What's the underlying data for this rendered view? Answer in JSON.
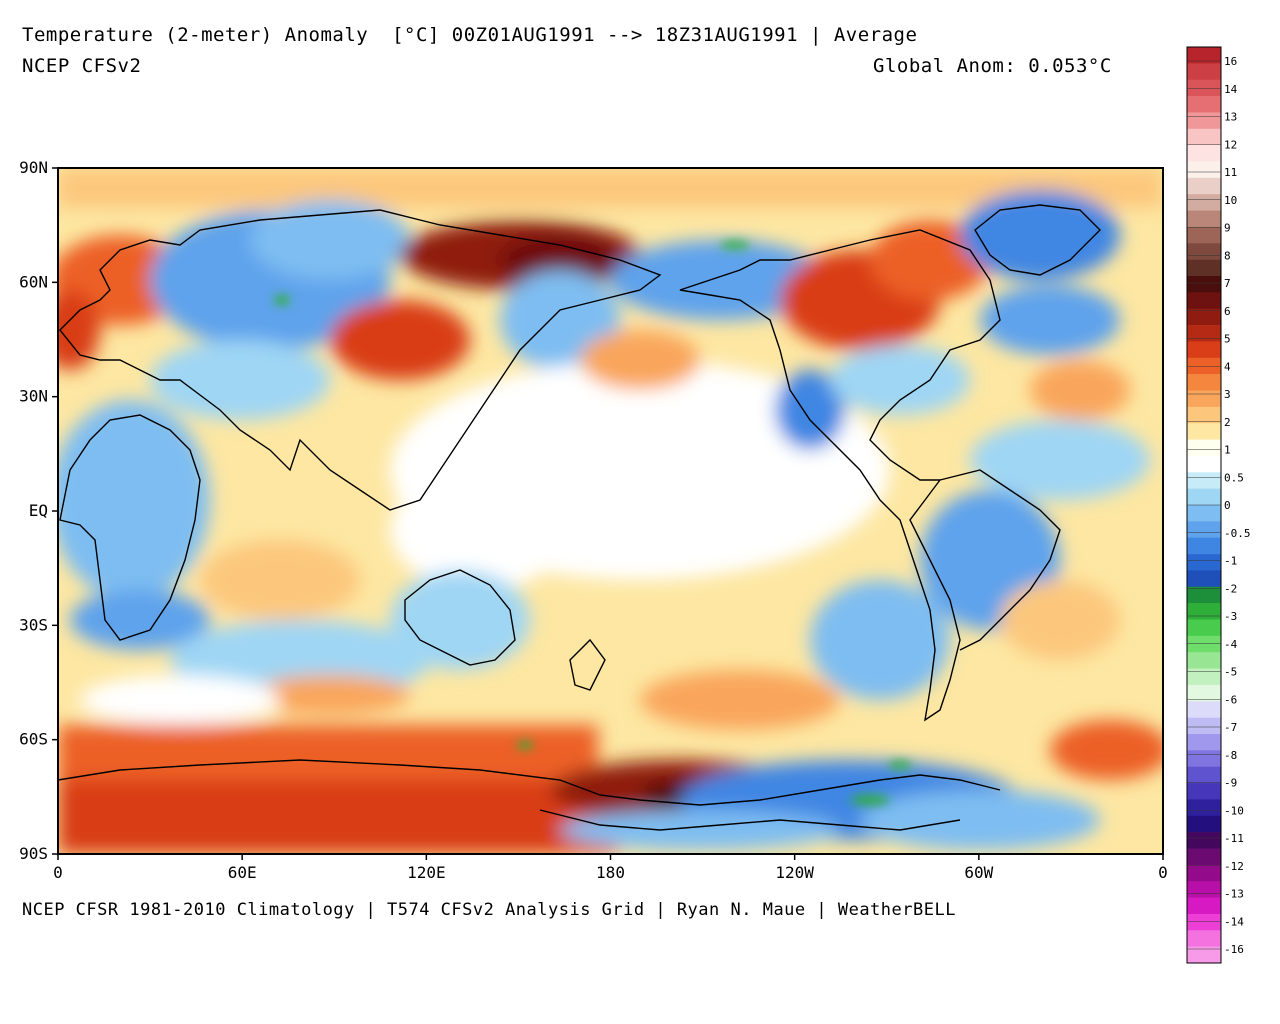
{
  "header": {
    "title": "Temperature (2-meter) Anomaly  [°C] 00Z01AUG1991 --> 18Z31AUG1991 | Average",
    "model": "NCEP CFSv2",
    "global_anomaly": "Global Anom: 0.053°C"
  },
  "footer": {
    "credit": "NCEP CFSR 1981-2010 Climatology | T574 CFSv2 Analysis Grid | Ryan N. Maue | WeatherBELL"
  },
  "map": {
    "latitude_labels": [
      "90N",
      "60N",
      "30N",
      "EQ",
      "30S",
      "60S",
      "90S"
    ],
    "longitude_labels": [
      "0",
      "60E",
      "120E",
      "180",
      "120W",
      "60W",
      "0"
    ]
  },
  "colorbar": {
    "colors": [
      "#b8242b",
      "#cc3f44",
      "#d9555a",
      "#e56f73",
      "#f0979a",
      "#f9c4c4",
      "#fde4e2",
      "#fbf0ea",
      "#e9cfc7",
      "#d2aba1",
      "#b98679",
      "#9c6558",
      "#7e4a3f",
      "#5e3026",
      "#4a0f0c",
      "#6e1111",
      "#8f1b11",
      "#b52a14",
      "#d93e18",
      "#ec6128",
      "#f5863d",
      "#f9a65c",
      "#fcc77d",
      "#fde7a2",
      "#fffff0",
      "#ffffff",
      "#c7ecf7",
      "#9fd6f4",
      "#7ebdf1",
      "#5ea3ec",
      "#3f86e3",
      "#2a68d1",
      "#1f4fb8",
      "#1d8f3a",
      "#2faf3a",
      "#49cc4e",
      "#6edd6b",
      "#98e694",
      "#c2f0bf",
      "#e3f8e0",
      "#dcdcfa",
      "#bfbcf3",
      "#9f98ec",
      "#7f74e0",
      "#5f53d0",
      "#4636b9",
      "#2f209e",
      "#230f7e",
      "#44075e",
      "#6b0a70",
      "#930a8b",
      "#b70fa8",
      "#d619c2",
      "#ed3ed6",
      "#f472e0",
      "#f79ae8"
    ],
    "tick_labels": [
      "16",
      "14",
      "13",
      "12",
      "11",
      "10",
      "9",
      "8",
      "7",
      "6",
      "5",
      "4",
      "3",
      "2",
      "1",
      "0.5",
      "0",
      "-0.5",
      "-1",
      "-2",
      "-3",
      "-4",
      "-5",
      "-6",
      "-7",
      "-8",
      "-9",
      "-10",
      "-11",
      "-12",
      "-13",
      "-14",
      "-16"
    ]
  },
  "regions": [
    {
      "name": "western-europe-warm",
      "color": "#ec6128"
    },
    {
      "name": "siberia-cold",
      "color": "#5ea3ec"
    },
    {
      "name": "eastern-siberia-warm",
      "color": "#8f1b11"
    },
    {
      "name": "mongolia-warm",
      "color": "#d93e18"
    },
    {
      "name": "north-pacific-cold",
      "color": "#5ea3ec"
    },
    {
      "name": "canada-warm",
      "color": "#d93e18"
    },
    {
      "name": "greenland-cold",
      "color": "#3f86e3"
    },
    {
      "name": "southern-ocean-warm",
      "color": "#d93e18"
    },
    {
      "name": "ross-sea-warm",
      "color": "#8f1b11"
    },
    {
      "name": "antarctica-cold",
      "color": "#5ea3ec"
    },
    {
      "name": "tropical-pacific-neutral",
      "color": "#ffffff"
    },
    {
      "name": "africa-cold",
      "color": "#7ebdf1"
    },
    {
      "name": "south-america-cold",
      "color": "#5ea3ec"
    }
  ]
}
